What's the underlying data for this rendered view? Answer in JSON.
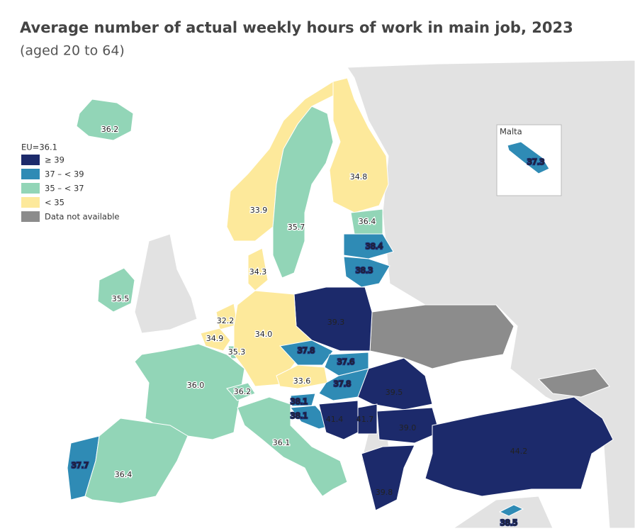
{
  "header": {
    "title": "Average number of actual weekly hours of work in main job, 2023",
    "subtitle": "(aged 20 to 64)"
  },
  "legend": {
    "title": "EU=36.1",
    "items": [
      {
        "label": "≥ 39",
        "color": "#1c2a6b"
      },
      {
        "label": "37 – < 39",
        "color": "#2f8bb5"
      },
      {
        "label": "35 – < 37",
        "color": "#92d5b7"
      },
      {
        "label": "< 35",
        "color": "#fde99b"
      },
      {
        "label": "Data not available",
        "color": "#8c8c8c"
      }
    ]
  },
  "inset": {
    "title": "Malta"
  },
  "regions": [
    {
      "label": "36.2",
      "color": "#92d5b7"
    },
    {
      "label": "33.9",
      "color": "#fde99b"
    },
    {
      "label": "35.7",
      "color": "#92d5b7"
    },
    {
      "label": "34.8",
      "color": "#fde99b"
    },
    {
      "label": "36.4",
      "color": "#92d5b7"
    },
    {
      "label": "38.4",
      "color": "#2f8bb5"
    },
    {
      "label": "38.3",
      "color": "#2f8bb5"
    },
    {
      "label": "34.3",
      "color": "#fde99b"
    },
    {
      "label": "35.5",
      "color": "#92d5b7"
    },
    {
      "label": "39.3",
      "color": "#1c2a6b"
    },
    {
      "label": "32.2",
      "color": "#fde99b"
    },
    {
      "label": "34.9",
      "color": "#fde99b"
    },
    {
      "label": "35.3",
      "color": "#92d5b7"
    },
    {
      "label": "34.0",
      "color": "#fde99b"
    },
    {
      "label": "37.8",
      "color": "#2f8bb5"
    },
    {
      "label": "37.6",
      "color": "#2f8bb5"
    },
    {
      "label": "33.6",
      "color": "#fde99b"
    },
    {
      "label": "37.8",
      "color": "#2f8bb5"
    },
    {
      "label": "36.0",
      "color": "#92d5b7"
    },
    {
      "label": "36.2",
      "color": "#92d5b7"
    },
    {
      "label": "38.1",
      "color": "#2f8bb5"
    },
    {
      "label": "38.1",
      "color": "#2f8bb5"
    },
    {
      "label": "39.5",
      "color": "#1c2a6b"
    },
    {
      "label": "41.4",
      "color": "#1c2a6b"
    },
    {
      "label": "41.7",
      "color": "#1c2a6b"
    },
    {
      "label": "39.0",
      "color": "#1c2a6b"
    },
    {
      "label": "36.1",
      "color": "#92d5b7"
    },
    {
      "label": "37.7",
      "color": "#2f8bb5"
    },
    {
      "label": "36.4",
      "color": "#92d5b7"
    },
    {
      "label": "44.2",
      "color": "#1c2a6b"
    },
    {
      "label": "39.8",
      "color": "#1c2a6b"
    },
    {
      "label": "38.5",
      "color": "#2f8bb5"
    },
    {
      "label": "37.3",
      "color": "#2f8bb5"
    }
  ]
}
